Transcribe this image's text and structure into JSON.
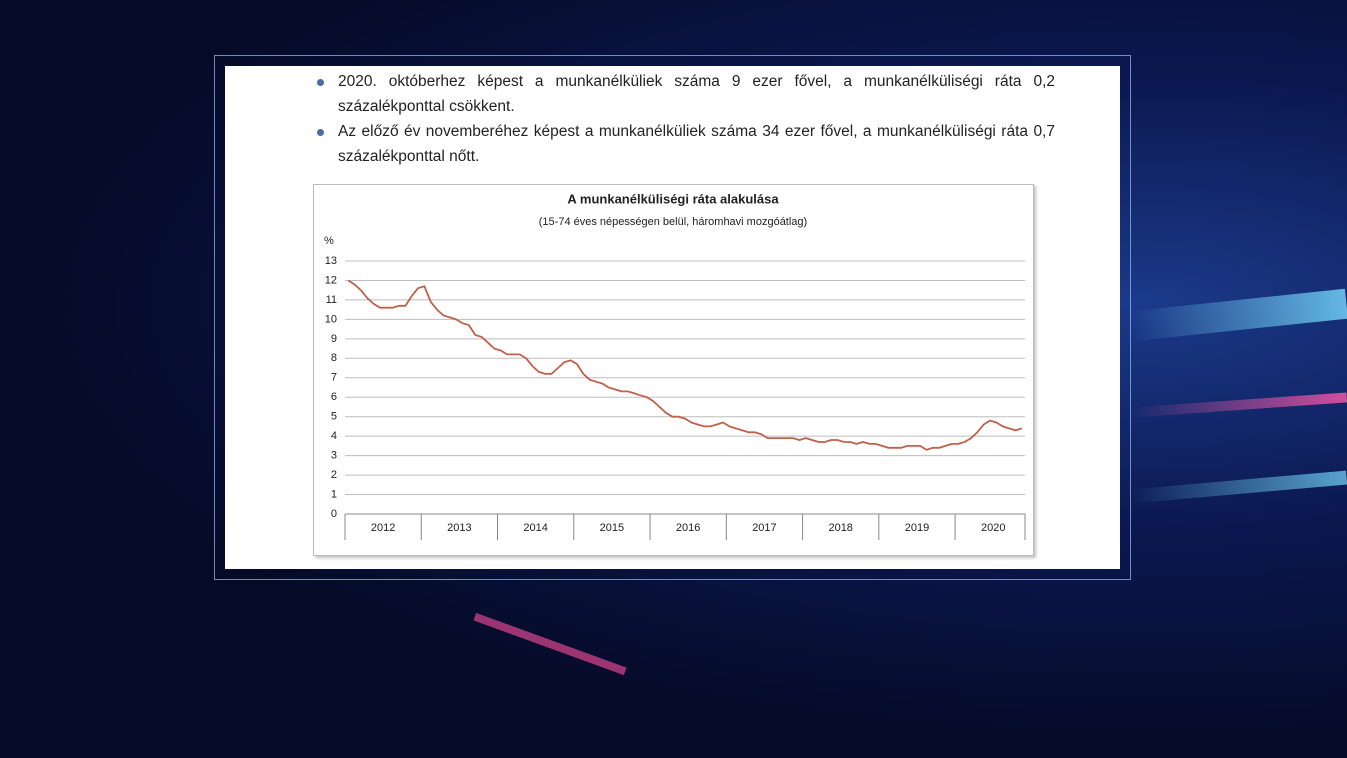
{
  "bullets": [
    "2020. októberhez képest a munkanélküliek száma 9 ezer fővel, a munkanélküliségi ráta 0,2 százalékponttal csökkent.",
    "Az előző év novemberéhez képest a munkanélküliek száma 34 ezer fővel, a munkanélküliségi ráta 0,7 százalékponttal nőtt."
  ],
  "chart_data": {
    "type": "line",
    "title": "A munkanélküliségi ráta alakulása",
    "subtitle": "(15-74 éves népességen belül, háromhavi mozgóátlag)",
    "y_label": "%",
    "categories": [
      null,
      null,
      null,
      null,
      null,
      "2012",
      null,
      null,
      null,
      null,
      null,
      null,
      null,
      null,
      null,
      null,
      null,
      "2013",
      null,
      null,
      null,
      null,
      null,
      null,
      null,
      null,
      null,
      null,
      null,
      "2014",
      null,
      null,
      null,
      null,
      null,
      null,
      null,
      null,
      null,
      null,
      null,
      "2015",
      null,
      null,
      null,
      null,
      null,
      null,
      null,
      null,
      null,
      null,
      null,
      "2016",
      null,
      null,
      null,
      null,
      null,
      null,
      null,
      null,
      null,
      null,
      null,
      "2017",
      null,
      null,
      null,
      null,
      null,
      null,
      null,
      null,
      null,
      null,
      null,
      "2018",
      null,
      null,
      null,
      null,
      null,
      null,
      null,
      null,
      null,
      null,
      null,
      "2019",
      null,
      null,
      null,
      null,
      null,
      null,
      null,
      null,
      null,
      null,
      null,
      "2020",
      null,
      null,
      null,
      null,
      null
    ],
    "series": [
      {
        "color": "#c0614a",
        "values": [
          12.0,
          11.8,
          11.5,
          11.1,
          10.8,
          10.6,
          10.6,
          10.6,
          10.7,
          10.7,
          11.2,
          11.6,
          11.7,
          10.9,
          10.5,
          10.2,
          10.1,
          10.0,
          9.8,
          9.7,
          9.2,
          9.1,
          8.8,
          8.5,
          8.4,
          8.2,
          8.2,
          8.2,
          8.0,
          7.6,
          7.3,
          7.2,
          7.2,
          7.5,
          7.8,
          7.9,
          7.7,
          7.2,
          6.9,
          6.8,
          6.7,
          6.5,
          6.4,
          6.3,
          6.3,
          6.2,
          6.1,
          6.0,
          5.8,
          5.5,
          5.2,
          5.0,
          5.0,
          4.9,
          4.7,
          4.6,
          4.5,
          4.5,
          4.6,
          4.7,
          4.5,
          4.4,
          4.3,
          4.2,
          4.2,
          4.1,
          3.9,
          3.9,
          3.9,
          3.9,
          3.9,
          3.8,
          3.9,
          3.8,
          3.7,
          3.7,
          3.8,
          3.8,
          3.7,
          3.7,
          3.6,
          3.7,
          3.6,
          3.6,
          3.5,
          3.4,
          3.4,
          3.4,
          3.5,
          3.5,
          3.5,
          3.3,
          3.4,
          3.4,
          3.5,
          3.6,
          3.6,
          3.7,
          3.9,
          4.2,
          4.6,
          4.8,
          4.7,
          4.5,
          4.4,
          4.3,
          4.4
        ]
      }
    ],
    "ylim": [
      0,
      13
    ],
    "yticks": [
      0,
      1,
      2,
      3,
      4,
      5,
      6,
      7,
      8,
      9,
      10,
      11,
      12,
      13
    ],
    "grid": true
  }
}
